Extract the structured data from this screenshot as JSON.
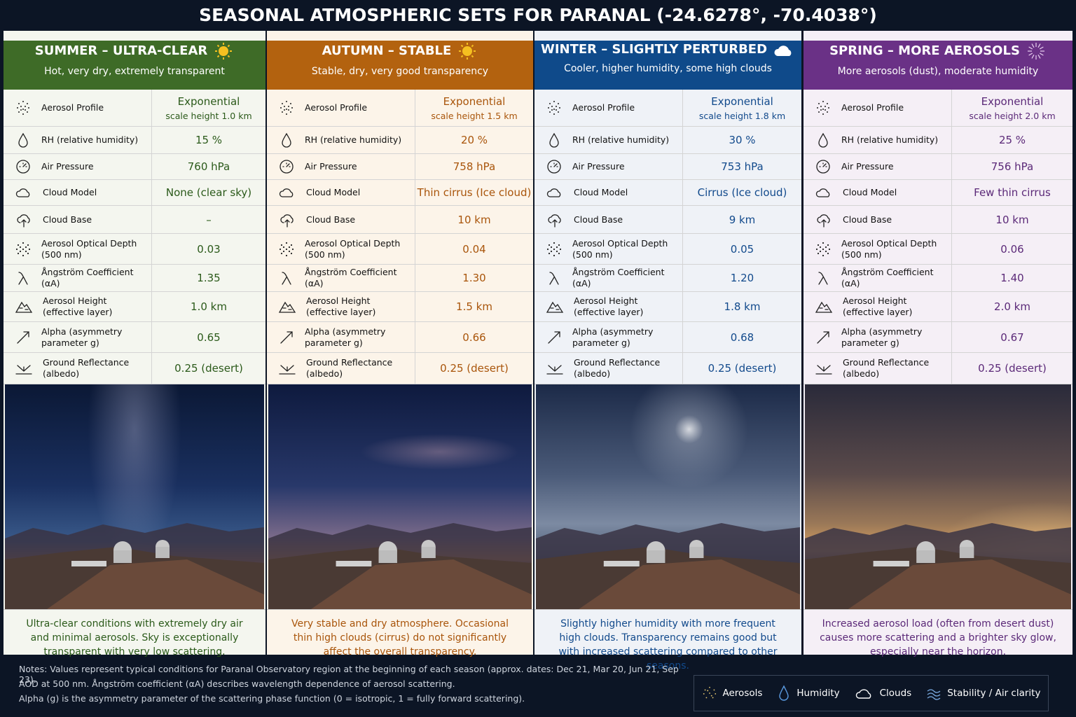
{
  "title": "SEASONAL ATMOSPHERIC SETS FOR PARANAL (-24.6278°, -70.4038°)",
  "seasons": [
    {
      "title": "SUMMER – ULTRA-CLEAR",
      "subtitle": "Hot, very dry, extremely transparent",
      "rows": [
        {
          "label": "Aerosol Profile",
          "value": "Exponential",
          "note": "scale height 1.0 km"
        },
        {
          "label": "RH (relative humidity)",
          "value": "15 %"
        },
        {
          "label": "Air Pressure",
          "value": "760 hPa"
        },
        {
          "label": "Cloud Model",
          "value": "None (clear sky)"
        },
        {
          "label": "Cloud Base",
          "value": "–"
        },
        {
          "label": "Aerosol Optical Depth (500 nm)",
          "value": "0.03"
        },
        {
          "label": "Ångström Coefficient (αA)",
          "value": "1.35"
        },
        {
          "label": "Aerosol Height (effective layer)",
          "value": "1.0 km"
        },
        {
          "label": "Alpha (asymmetry parameter g)",
          "value": "0.65"
        },
        {
          "label": "Ground Reflectance (albedo)",
          "value": "0.25 (desert)"
        }
      ],
      "description": "Ultra-clear conditions with extremely dry air and minimal aerosols. Sky is exceptionally transparent with very low scattering."
    },
    {
      "title": "AUTUMN – STABLE",
      "subtitle": "Stable, dry, very good transparency",
      "rows": [
        {
          "label": "Aerosol Profile",
          "value": "Exponential",
          "note": "scale height 1.5 km"
        },
        {
          "label": "RH (relative humidity)",
          "value": "20 %"
        },
        {
          "label": "Air Pressure",
          "value": "758 hPa"
        },
        {
          "label": "Cloud Model",
          "value": "Thin cirrus (Ice cloud)"
        },
        {
          "label": "Cloud Base",
          "value": "10 km"
        },
        {
          "label": "Aerosol Optical Depth (500 nm)",
          "value": "0.04"
        },
        {
          "label": "Ångström Coefficient (αA)",
          "value": "1.30"
        },
        {
          "label": "Aerosol Height (effective layer)",
          "value": "1.5 km"
        },
        {
          "label": "Alpha (asymmetry parameter g)",
          "value": "0.66"
        },
        {
          "label": "Ground Reflectance (albedo)",
          "value": "0.25 (desert)"
        }
      ],
      "description": "Very stable and dry atmosphere. Occasional thin high clouds (cirrus) do not significantly affect the overall transparency."
    },
    {
      "title": "WINTER – SLIGHTLY PERTURBED",
      "subtitle": "Cooler, higher humidity, some high clouds",
      "rows": [
        {
          "label": "Aerosol Profile",
          "value": "Exponential",
          "note": "scale height 1.8 km"
        },
        {
          "label": "RH (relative humidity)",
          "value": "30 %"
        },
        {
          "label": "Air Pressure",
          "value": "753 hPa"
        },
        {
          "label": "Cloud Model",
          "value": "Cirrus (Ice cloud)"
        },
        {
          "label": "Cloud Base",
          "value": "9 km"
        },
        {
          "label": "Aerosol Optical Depth (500 nm)",
          "value": "0.05"
        },
        {
          "label": "Ångström Coefficient (αA)",
          "value": "1.20"
        },
        {
          "label": "Aerosol Height (effective layer)",
          "value": "1.8 km"
        },
        {
          "label": "Alpha (asymmetry parameter g)",
          "value": "0.68"
        },
        {
          "label": "Ground Reflectance (albedo)",
          "value": "0.25 (desert)"
        }
      ],
      "description": "Slightly higher humidity with more frequent high clouds. Transparency remains good but with increased scattering compared to other seasons."
    },
    {
      "title": "SPRING – MORE AEROSOLS",
      "subtitle": "More aerosols (dust), moderate humidity",
      "rows": [
        {
          "label": "Aerosol Profile",
          "value": "Exponential",
          "note": "scale height 2.0 km"
        },
        {
          "label": "RH (relative humidity)",
          "value": "25 %"
        },
        {
          "label": "Air Pressure",
          "value": "756 hPa"
        },
        {
          "label": "Cloud Model",
          "value": "Few thin cirrus"
        },
        {
          "label": "Cloud Base",
          "value": "10 km"
        },
        {
          "label": "Aerosol Optical Depth (500 nm)",
          "value": "0.06"
        },
        {
          "label": "Ångström Coefficient (αA)",
          "value": "1.40"
        },
        {
          "label": "Aerosol Height (effective layer)",
          "value": "2.0 km"
        },
        {
          "label": "Alpha (asymmetry parameter g)",
          "value": "0.67"
        },
        {
          "label": "Ground Reflectance (albedo)",
          "value": "0.25 (desert)"
        }
      ],
      "description": "Increased aerosol load (often from desert dust) causes more scattering and a brighter sky glow, especially near the horizon."
    }
  ],
  "notes": [
    "Notes: Values represent typical conditions for Paranal Observatory region at the beginning of each season (approx. dates: Dec 21, Mar 20, Jun 21, Sep 23).",
    "AOD at 500 nm. Ångström coefficient (αA) describes wavelength dependence of aerosol scattering.",
    "Alpha (g) is the asymmetry parameter of the scattering phase function (0 = isotropic, 1 = fully forward scattering)."
  ],
  "legend": [
    "Aerosols",
    "Humidity",
    "Clouds",
    "Stability / Air clarity"
  ]
}
